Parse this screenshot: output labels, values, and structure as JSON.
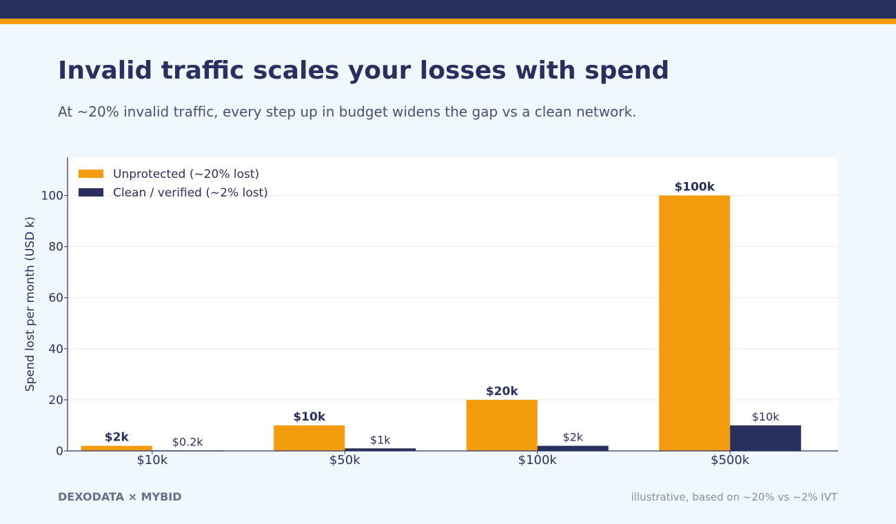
{
  "colors": {
    "brand_dark": "#29305e",
    "accent": "#f39c0d",
    "background": "#f0f7fd"
  },
  "header": {
    "title": "Invalid traffic scales your losses with spend",
    "subtitle": "At ~20% invalid traffic, every step up in budget widens the gap vs a clean network."
  },
  "footer": {
    "brand": "DEXODATA  ×  MYBID",
    "note": "illustrative, based on ~20% vs ~2% IVT"
  },
  "chart_data": {
    "type": "bar",
    "ylabel": "Spend lost per month (USD k)",
    "ylim": [
      0,
      115
    ],
    "yticks": [
      0,
      20,
      40,
      60,
      80,
      100
    ],
    "grid": true,
    "legend_position": "top-left",
    "categories": [
      "$10k",
      "$50k",
      "$100k",
      "$500k"
    ],
    "series": [
      {
        "name": "Unprotected  (~20% lost)",
        "color": "#f39c0d",
        "values": [
          2,
          10,
          20,
          100
        ],
        "labels": [
          "$2k",
          "$10k",
          "$20k",
          "$100k"
        ]
      },
      {
        "name": "Clean / verified  (~2% lost)",
        "color": "#29305e",
        "values": [
          0.2,
          1,
          2,
          10
        ],
        "labels": [
          "$0.2k",
          "$1k",
          "$2k",
          "$10k"
        ]
      }
    ]
  }
}
